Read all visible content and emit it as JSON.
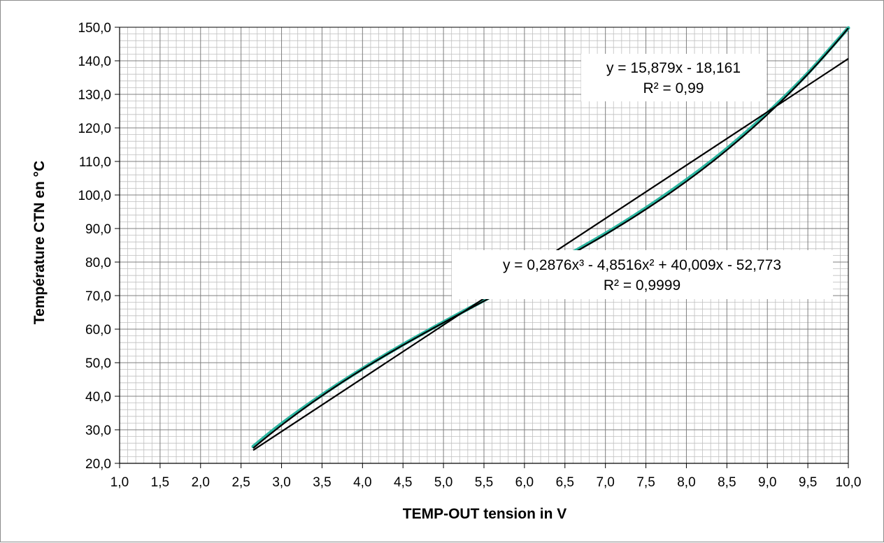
{
  "chart_data": {
    "type": "line",
    "title": "",
    "xlabel": "TEMP-OUT  tension in V",
    "ylabel": "Température CTN en °C",
    "xlim": [
      1.0,
      10.0
    ],
    "ylim": [
      20.0,
      150.0
    ],
    "x_ticks": [
      "1,0",
      "1,5",
      "2,0",
      "2,5",
      "3,0",
      "3,5",
      "4,0",
      "4,5",
      "5,0",
      "5,5",
      "6,0",
      "6,5",
      "7,0",
      "7,5",
      "8,0",
      "8,5",
      "9,0",
      "9,5",
      "10,0"
    ],
    "y_ticks": [
      "20,0",
      "30,0",
      "40,0",
      "50,0",
      "60,0",
      "70,0",
      "80,0",
      "90,0",
      "100,0",
      "110,0",
      "120,0",
      "130,0",
      "140,0",
      "150,0"
    ],
    "grid": true,
    "grid_minor_x": 0.1,
    "grid_minor_y": 2,
    "series": [
      {
        "color": "#2bb5a0",
        "x": [
          2.65,
          3.0,
          3.5,
          4.0,
          4.5,
          5.0,
          5.5,
          6.0,
          6.5,
          7.0,
          7.5,
          8.0,
          8.5,
          9.0,
          9.5,
          10.0
        ],
        "values": [
          25.0,
          31.8,
          40.4,
          48.2,
          55.4,
          62.1,
          68.6,
          75.0,
          81.6,
          88.5,
          96.1,
          104.5,
          113.8,
          124.4,
          136.3,
          149.8
        ]
      },
      {
        "color": "#000000",
        "type": "trendline-poly3",
        "x_range": [
          2.65,
          10.0
        ],
        "coefficients": [
          0.2876,
          -4.8516,
          40.009,
          -52.773
        ]
      },
      {
        "color": "#000000",
        "type": "trendline-linear",
        "x_range": [
          2.65,
          10.0
        ],
        "coefficients": [
          15.879,
          -18.161
        ]
      }
    ],
    "annotations": {
      "linear_eq": "y = 15,879x - 18,161",
      "linear_r2": "R² = 0,99",
      "poly_eq": "y = 0,2876x³ - 4,8516x² + 40,009x - 52,773",
      "poly_r2": "R² = 0,9999"
    }
  }
}
